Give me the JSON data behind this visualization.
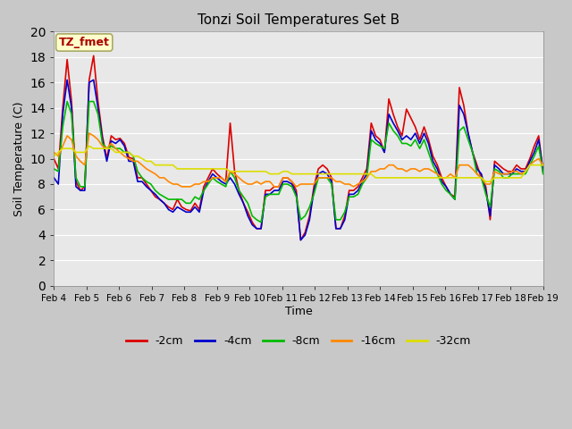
{
  "title": "Tonzi Soil Temperatures Set B",
  "xlabel": "Time",
  "ylabel": "Soil Temperature (C)",
  "ylim": [
    0,
    20
  ],
  "background_color": "#c8c8c8",
  "plot_bg_color": "#e8e8e8",
  "grid_color": "#ffffff",
  "annotation_text": "TZ_fmet",
  "annotation_color": "#aa0000",
  "annotation_bg": "#ffffcc",
  "annotation_border": "#aaaa66",
  "xtick_labels": [
    "Feb 4",
    "Feb 5",
    "Feb 6",
    "Feb 7",
    "Feb 8",
    "Feb 9",
    "Feb 10",
    "Feb 11",
    "Feb 12",
    "Feb 13",
    "Feb 14",
    "Feb 15",
    "Feb 16",
    "Feb 17",
    "Feb 18",
    "Feb 19"
  ],
  "series_order": [
    "-2cm",
    "-4cm",
    "-8cm",
    "-16cm",
    "-32cm"
  ],
  "series": {
    "-2cm": {
      "color": "#dd0000",
      "linewidth": 1.2
    },
    "-4cm": {
      "color": "#0000cc",
      "linewidth": 1.2
    },
    "-8cm": {
      "color": "#00bb00",
      "linewidth": 1.2
    },
    "-16cm": {
      "color": "#ff8800",
      "linewidth": 1.2
    },
    "-32cm": {
      "color": "#dddd00",
      "linewidth": 1.2
    }
  },
  "data_points_per_day": 4,
  "data": {
    "-2cm": [
      10.0,
      9.2,
      14.0,
      17.8,
      14.5,
      8.2,
      7.5,
      7.8,
      16.2,
      18.1,
      14.5,
      11.8,
      10.0,
      11.8,
      11.5,
      11.6,
      11.2,
      10.1,
      10.0,
      8.5,
      8.5,
      8.0,
      7.5,
      7.0,
      6.8,
      6.5,
      6.2,
      6.0,
      6.8,
      6.2,
      6.0,
      5.9,
      6.5,
      6.0,
      7.8,
      8.5,
      9.2,
      8.8,
      8.5,
      8.2,
      12.8,
      9.0,
      7.5,
      6.5,
      5.8,
      5.0,
      4.5,
      4.5,
      7.5,
      7.5,
      7.8,
      7.8,
      8.5,
      8.5,
      8.2,
      7.5,
      3.6,
      4.2,
      5.5,
      7.8,
      9.2,
      9.5,
      9.2,
      8.5,
      4.5,
      4.5,
      5.5,
      7.5,
      7.5,
      7.8,
      8.5,
      9.2,
      12.8,
      11.8,
      11.5,
      10.5,
      14.7,
      13.5,
      12.5,
      11.8,
      13.9,
      13.2,
      12.5,
      11.5,
      12.5,
      11.5,
      10.2,
      9.5,
      8.5,
      7.8,
      7.2,
      7.0,
      15.6,
      14.2,
      12.0,
      10.5,
      9.5,
      8.5,
      7.8,
      5.2,
      9.8,
      9.5,
      9.2,
      9.0,
      9.0,
      9.5,
      9.2,
      9.2,
      10.0,
      11.0,
      11.8,
      9.0
    ],
    "-4cm": [
      8.5,
      8.0,
      13.5,
      16.2,
      14.0,
      7.8,
      7.5,
      7.5,
      16.0,
      16.2,
      14.0,
      11.5,
      9.8,
      11.4,
      11.2,
      11.5,
      11.0,
      9.8,
      9.8,
      8.2,
      8.2,
      7.8,
      7.5,
      7.2,
      6.8,
      6.5,
      6.0,
      5.8,
      6.2,
      6.0,
      5.8,
      5.8,
      6.2,
      5.8,
      7.5,
      8.2,
      8.8,
      8.5,
      8.2,
      8.0,
      8.5,
      8.0,
      7.2,
      6.5,
      5.5,
      4.8,
      4.5,
      4.5,
      7.2,
      7.2,
      7.5,
      7.5,
      8.2,
      8.2,
      8.0,
      7.2,
      3.6,
      4.0,
      5.2,
      7.5,
      8.8,
      9.0,
      8.8,
      8.2,
      4.5,
      4.5,
      5.2,
      7.2,
      7.2,
      7.5,
      8.2,
      8.8,
      12.2,
      11.5,
      11.2,
      10.5,
      13.5,
      12.8,
      12.2,
      11.5,
      11.8,
      11.5,
      12.0,
      11.2,
      12.0,
      11.2,
      9.8,
      9.2,
      8.2,
      7.8,
      7.2,
      6.8,
      14.2,
      13.5,
      12.0,
      10.5,
      9.2,
      8.8,
      7.5,
      5.5,
      9.5,
      9.2,
      8.8,
      8.8,
      8.8,
      9.2,
      9.0,
      9.0,
      9.8,
      10.5,
      11.5,
      9.0
    ],
    "-8cm": [
      9.2,
      9.0,
      12.5,
      14.5,
      13.5,
      8.5,
      7.8,
      7.8,
      14.5,
      14.5,
      13.5,
      11.2,
      10.8,
      11.0,
      10.8,
      10.8,
      10.5,
      10.5,
      10.2,
      9.0,
      8.5,
      8.2,
      8.0,
      7.5,
      7.2,
      7.0,
      6.8,
      6.8,
      6.8,
      6.8,
      6.5,
      6.5,
      7.0,
      6.8,
      7.5,
      8.0,
      8.5,
      8.2,
      8.0,
      7.8,
      9.0,
      8.5,
      7.5,
      7.0,
      6.5,
      5.5,
      5.2,
      5.0,
      7.0,
      7.2,
      7.2,
      7.2,
      8.0,
      8.0,
      7.8,
      7.0,
      5.2,
      5.5,
      6.2,
      7.2,
      8.5,
      8.5,
      8.5,
      8.0,
      5.2,
      5.2,
      5.8,
      7.0,
      7.0,
      7.2,
      8.0,
      8.5,
      11.5,
      11.2,
      11.0,
      10.8,
      12.8,
      12.2,
      11.8,
      11.2,
      11.2,
      11.0,
      11.5,
      10.8,
      11.5,
      10.5,
      9.5,
      8.8,
      8.0,
      7.5,
      7.2,
      6.8,
      12.2,
      12.5,
      11.5,
      10.5,
      8.8,
      8.5,
      7.2,
      6.2,
      9.2,
      9.0,
      8.5,
      8.5,
      8.8,
      8.8,
      8.8,
      8.8,
      9.5,
      10.2,
      11.0,
      8.8
    ],
    "-16cm": [
      10.5,
      10.2,
      11.0,
      11.8,
      11.5,
      10.2,
      9.8,
      9.5,
      12.0,
      11.8,
      11.5,
      11.0,
      10.8,
      11.2,
      10.8,
      10.5,
      10.2,
      10.0,
      9.8,
      9.8,
      9.5,
      9.2,
      9.0,
      8.8,
      8.5,
      8.5,
      8.2,
      8.0,
      8.0,
      7.8,
      7.8,
      7.8,
      8.0,
      8.0,
      8.2,
      8.2,
      8.5,
      8.5,
      8.5,
      8.2,
      9.0,
      8.8,
      8.5,
      8.2,
      8.0,
      8.0,
      8.2,
      8.0,
      8.2,
      8.2,
      7.8,
      7.8,
      8.5,
      8.5,
      8.2,
      7.8,
      8.0,
      8.0,
      8.0,
      8.0,
      8.5,
      8.5,
      8.5,
      8.5,
      8.2,
      8.2,
      8.0,
      8.0,
      7.8,
      8.0,
      8.2,
      8.5,
      9.0,
      9.0,
      9.2,
      9.2,
      9.5,
      9.5,
      9.2,
      9.2,
      9.0,
      9.2,
      9.2,
      9.0,
      9.2,
      9.2,
      9.0,
      8.8,
      8.5,
      8.5,
      8.8,
      8.5,
      9.5,
      9.5,
      9.5,
      9.2,
      8.8,
      8.5,
      8.0,
      8.0,
      9.0,
      8.8,
      8.8,
      8.8,
      9.0,
      9.0,
      8.8,
      9.0,
      9.5,
      9.8,
      10.0,
      9.5
    ],
    "-32cm": [
      10.2,
      10.5,
      10.8,
      10.8,
      10.8,
      10.5,
      10.5,
      10.5,
      11.0,
      10.8,
      10.8,
      10.8,
      10.8,
      10.8,
      10.5,
      10.5,
      10.5,
      10.5,
      10.2,
      10.2,
      10.0,
      9.8,
      9.8,
      9.5,
      9.5,
      9.5,
      9.5,
      9.5,
      9.2,
      9.2,
      9.2,
      9.2,
      9.2,
      9.2,
      9.2,
      9.2,
      9.2,
      9.2,
      9.2,
      9.2,
      9.0,
      9.0,
      9.0,
      9.0,
      9.0,
      9.0,
      9.0,
      9.0,
      9.0,
      8.8,
      8.8,
      8.8,
      9.0,
      9.0,
      8.8,
      8.8,
      8.8,
      8.8,
      8.8,
      8.8,
      8.8,
      8.8,
      8.8,
      8.8,
      8.8,
      8.8,
      8.8,
      8.8,
      8.8,
      8.8,
      8.8,
      8.8,
      8.8,
      8.5,
      8.5,
      8.5,
      8.5,
      8.5,
      8.5,
      8.5,
      8.5,
      8.5,
      8.5,
      8.5,
      8.5,
      8.5,
      8.5,
      8.5,
      8.5,
      8.5,
      8.5,
      8.5,
      8.5,
      8.5,
      8.5,
      8.5,
      8.5,
      8.5,
      8.2,
      8.2,
      8.5,
      8.5,
      8.5,
      8.5,
      8.5,
      8.5,
      8.5,
      9.0,
      9.5,
      9.5,
      9.5,
      9.5
    ]
  }
}
